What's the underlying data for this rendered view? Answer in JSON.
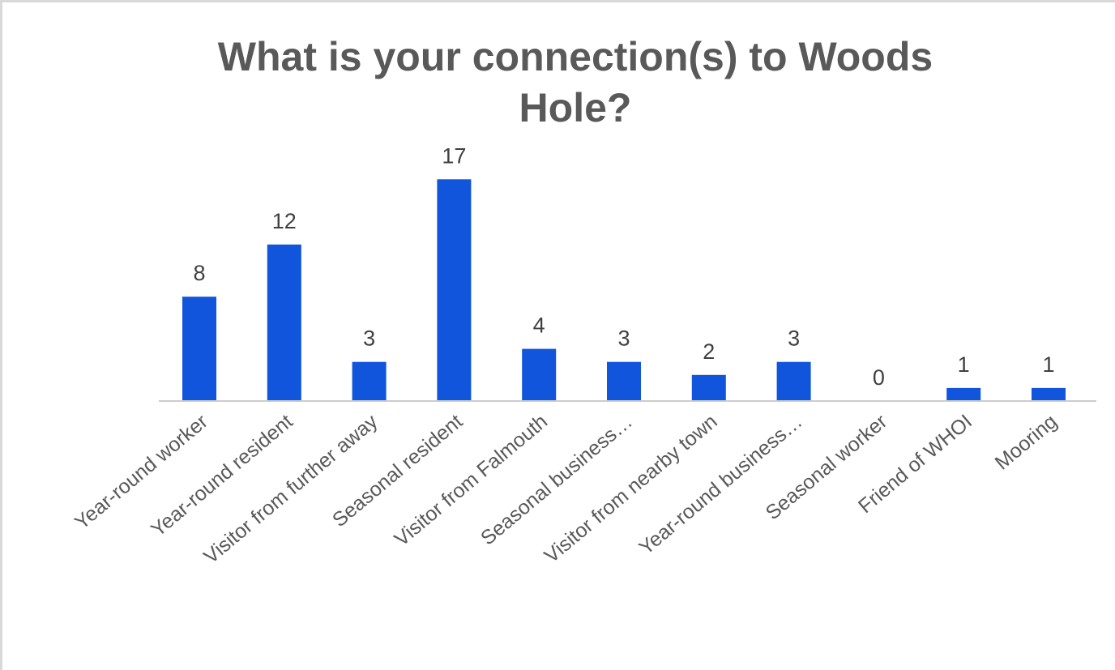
{
  "chart_data": {
    "type": "bar",
    "title": "What is your connection(s) to Woods Hole?",
    "title_lines": [
      "What is your connection(s) to Woods",
      "Hole?"
    ],
    "xlabel": "",
    "ylabel": "",
    "categories": [
      "Year-round worker",
      "Year-round resident",
      "Visitor from further away",
      "Seasonal resident",
      "Visitor from Falmouth",
      "Seasonal business…",
      "Visitor from nearby town",
      "Year-round business…",
      "Seasonal worker",
      "Friend of WHOI",
      "Mooring"
    ],
    "values": [
      8,
      12,
      3,
      17,
      4,
      3,
      2,
      3,
      0,
      1,
      1
    ],
    "ylim": [
      0,
      17
    ],
    "grid": false,
    "legend": "none",
    "data_labels": true,
    "colors": {
      "bar": "#1155dd",
      "axis": "#cccccc",
      "title": "#595959",
      "data_label": "#404040",
      "tick_label": "#595959",
      "frame": "#d9d9d9"
    }
  }
}
